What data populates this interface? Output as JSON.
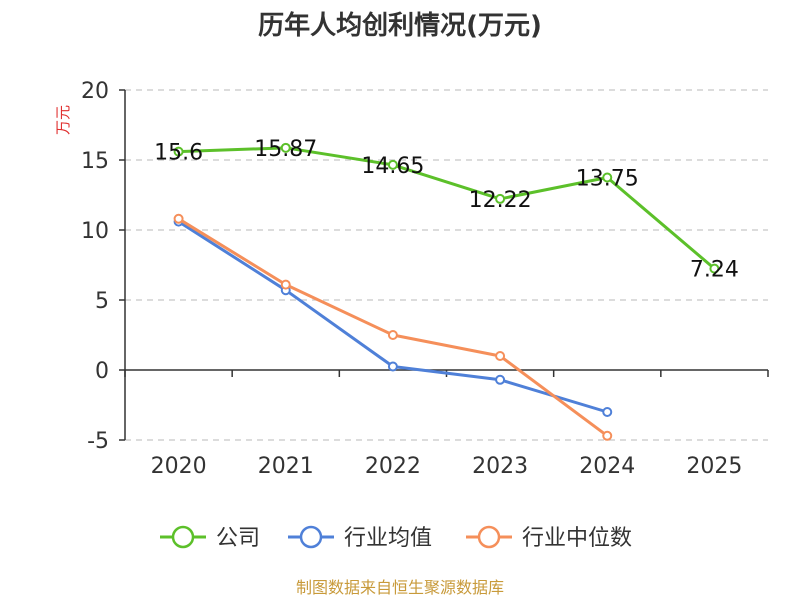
{
  "chart_data": {
    "type": "line",
    "title": "历年人均创利情况(万元)",
    "ylabel": "万元",
    "xlabel": "",
    "categories": [
      "2020",
      "2021",
      "2022",
      "2023",
      "2024",
      "2025"
    ],
    "ylim": [
      -5,
      20
    ],
    "yticks": [
      -5,
      0,
      5,
      10,
      15,
      20
    ],
    "grid": true,
    "legend_position": "bottom",
    "series": [
      {
        "name": "公司",
        "color": "#5cc02a",
        "values": [
          15.6,
          15.87,
          14.65,
          12.22,
          13.75,
          7.24
        ],
        "labels": [
          "15.6",
          "15.87",
          "14.65",
          "12.22",
          "13.75",
          "7.24"
        ]
      },
      {
        "name": "行业均值",
        "color": "#4f80d8",
        "values": [
          10.6,
          5.7,
          0.25,
          -0.7,
          -3.0,
          null
        ]
      },
      {
        "name": "行业中位数",
        "color": "#f58f5a",
        "values": [
          10.8,
          6.1,
          2.5,
          1.0,
          -4.7,
          null
        ]
      }
    ],
    "source": "制图数据来自恒生聚源数据库"
  }
}
